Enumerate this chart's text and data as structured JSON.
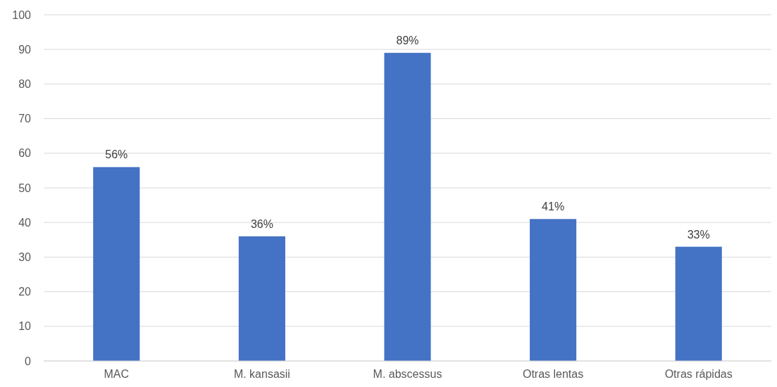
{
  "chart_data": {
    "type": "bar",
    "categories": [
      "MAC",
      "M. kansasii",
      "M. abscessus",
      "Otras lentas",
      "Otras rápidas"
    ],
    "values": [
      56,
      36,
      89,
      41,
      33
    ],
    "value_labels": [
      "56%",
      "36%",
      "89%",
      "41%",
      "33%"
    ],
    "color": "#4472c4",
    "ylim": [
      0,
      100
    ],
    "yticks": [
      0,
      10,
      20,
      30,
      40,
      50,
      60,
      70,
      80,
      90,
      100
    ],
    "grid": "y"
  }
}
